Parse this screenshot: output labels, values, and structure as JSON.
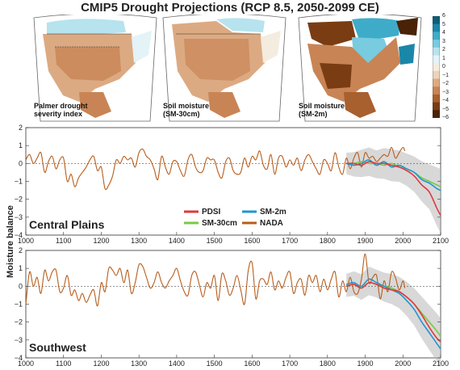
{
  "title": "CMIP5 Drought Projections (RCP 8.5, 2050-2099 CE)",
  "maps": [
    {
      "label_line1": "Palmer drought",
      "label_line2": "severity index"
    },
    {
      "label_line1": "Soil moisture",
      "label_line2": "(SM-30cm)"
    },
    {
      "label_line1": "Soil moisture",
      "label_line2": "(SM-2m)"
    }
  ],
  "colorbar": {
    "ticks": [
      "6",
      "5",
      "4",
      "3",
      "2",
      "1",
      "0",
      "−1",
      "−2",
      "−3",
      "−4",
      "−5",
      "−6"
    ],
    "colors": [
      "#0b5f77",
      "#1a87a8",
      "#3eacc9",
      "#79cbe0",
      "#b6e3ee",
      "#e3f3f7",
      "#f4ecdf",
      "#ecd3bb",
      "#dcaa82",
      "#c98455",
      "#a8602e",
      "#7a3d13",
      "#4a2206"
    ]
  },
  "ylabel": "Moisture balance",
  "colors": {
    "PDSI": "#e0383e",
    "SM-30cm": "#7ac943",
    "SM-2m": "#1f96d3",
    "NADA": "#b85c1a",
    "ensemble": "#b8b8b8"
  },
  "chart_data": [
    {
      "type": "line",
      "region": "Central Plains",
      "xlim": [
        1000,
        2100
      ],
      "ylim": [
        -4,
        2
      ],
      "xticks": [
        1000,
        1100,
        1200,
        1300,
        1400,
        1500,
        1600,
        1700,
        1800,
        1900,
        2000,
        2100
      ],
      "yticks": [
        2,
        1,
        0,
        -1,
        -2,
        -3,
        -4
      ],
      "legend": [
        "PDSI",
        "SM-2m",
        "SM-30cm",
        "NADA"
      ],
      "series": [
        {
          "name": "NADA",
          "x": [
            1000,
            1010,
            1020,
            1030,
            1040,
            1050,
            1060,
            1070,
            1080,
            1090,
            1100,
            1110,
            1120,
            1130,
            1140,
            1150,
            1160,
            1170,
            1180,
            1190,
            1200,
            1210,
            1220,
            1230,
            1240,
            1250,
            1260,
            1270,
            1280,
            1290,
            1300,
            1310,
            1320,
            1330,
            1340,
            1350,
            1360,
            1370,
            1380,
            1390,
            1400,
            1410,
            1420,
            1430,
            1440,
            1450,
            1460,
            1470,
            1480,
            1490,
            1500,
            1510,
            1520,
            1530,
            1540,
            1550,
            1560,
            1570,
            1580,
            1590,
            1600,
            1610,
            1620,
            1630,
            1640,
            1650,
            1660,
            1670,
            1680,
            1690,
            1700,
            1710,
            1720,
            1730,
            1740,
            1750,
            1760,
            1770,
            1780,
            1790,
            1800,
            1810,
            1820,
            1830,
            1840,
            1850,
            1860,
            1870,
            1880,
            1890,
            1900,
            1910,
            1920,
            1930,
            1940,
            1950,
            1960,
            1970,
            1980,
            1990,
            2000,
            2005
          ],
          "y": [
            0.2,
            0.5,
            0.0,
            0.3,
            0.6,
            -0.5,
            0.1,
            0.4,
            -0.3,
            0.2,
            0.3,
            -1.0,
            -0.6,
            -1.3,
            -0.8,
            -0.5,
            -0.2,
            0.2,
            0.4,
            -0.4,
            -0.2,
            -1.4,
            -1.2,
            -0.7,
            0.2,
            0.0,
            0.4,
            0.2,
            0.3,
            -0.2,
            0.6,
            0.8,
            0.4,
            0.2,
            -0.3,
            -0.9,
            0.4,
            -0.2,
            -0.6,
            0.1,
            0.1,
            -0.4,
            -0.7,
            0.2,
            0.5,
            -0.2,
            -0.5,
            -0.4,
            0.3,
            0.2,
            0.2,
            -0.5,
            -0.8,
            0.1,
            0.3,
            -0.4,
            -0.6,
            -0.5,
            0.3,
            -0.2,
            0.4,
            0.2,
            0.7,
            -0.1,
            -0.3,
            0.5,
            -0.6,
            0.3,
            0.4,
            -0.2,
            0.2,
            -0.1,
            0.3,
            -0.4,
            0.2,
            0.5,
            0.1,
            -0.3,
            -0.6,
            0.2,
            0.0,
            -0.4,
            0.6,
            -0.2,
            -0.6,
            0.3,
            -0.3,
            0.3,
            0.6,
            -0.2,
            0.6,
            0.3,
            0.4,
            0.1,
            0.3,
            0.5,
            0.4,
            0.9,
            0.3,
            0.6,
            0.9,
            0.7
          ]
        },
        {
          "name": "PDSI",
          "x": [
            1850,
            1870,
            1890,
            1910,
            1930,
            1950,
            1970,
            1990,
            2010,
            2030,
            2050,
            2070,
            2090,
            2100
          ],
          "y": [
            0.0,
            0.0,
            -0.1,
            0.1,
            0.0,
            0.0,
            -0.1,
            -0.2,
            -0.4,
            -0.7,
            -1.2,
            -1.6,
            -2.5,
            -2.9
          ]
        },
        {
          "name": "SM-2m",
          "x": [
            1850,
            1870,
            1890,
            1910,
            1930,
            1950,
            1970,
            1990,
            2010,
            2030,
            2050,
            2070,
            2090,
            2100
          ],
          "y": [
            0.0,
            -0.1,
            0.0,
            0.2,
            -0.1,
            0.1,
            -0.2,
            -0.1,
            -0.3,
            -0.5,
            -0.9,
            -1.1,
            -1.4,
            -1.5
          ]
        },
        {
          "name": "SM-30cm",
          "x": [
            1850,
            1870,
            1890,
            1910,
            1930,
            1950,
            1970,
            1990,
            2010,
            2030,
            2050,
            2070,
            2090,
            2100
          ],
          "y": [
            0.0,
            0.0,
            0.1,
            0.0,
            0.0,
            -0.1,
            0.0,
            -0.2,
            -0.3,
            -0.5,
            -0.8,
            -1.0,
            -1.2,
            -1.3
          ]
        }
      ]
    },
    {
      "type": "line",
      "region": "Southwest",
      "xlim": [
        1000,
        2100
      ],
      "ylim": [
        -4,
        2
      ],
      "xticks": [
        1000,
        1100,
        1200,
        1300,
        1400,
        1500,
        1600,
        1700,
        1800,
        1900,
        2000,
        2100
      ],
      "yticks": [
        2,
        1,
        0,
        -1,
        -2,
        -3,
        -4
      ],
      "series": [
        {
          "name": "NADA",
          "x": [
            1000,
            1010,
            1020,
            1030,
            1040,
            1050,
            1060,
            1070,
            1080,
            1090,
            1100,
            1110,
            1120,
            1130,
            1140,
            1150,
            1160,
            1170,
            1180,
            1190,
            1200,
            1210,
            1220,
            1230,
            1240,
            1250,
            1260,
            1270,
            1280,
            1290,
            1300,
            1310,
            1320,
            1330,
            1340,
            1350,
            1360,
            1370,
            1380,
            1390,
            1400,
            1410,
            1420,
            1430,
            1440,
            1450,
            1460,
            1470,
            1480,
            1490,
            1500,
            1510,
            1520,
            1530,
            1540,
            1550,
            1560,
            1570,
            1580,
            1590,
            1600,
            1610,
            1620,
            1630,
            1640,
            1650,
            1660,
            1670,
            1680,
            1690,
            1700,
            1710,
            1720,
            1730,
            1740,
            1750,
            1760,
            1770,
            1780,
            1790,
            1800,
            1810,
            1820,
            1830,
            1840,
            1850,
            1860,
            1870,
            1880,
            1890,
            1900,
            1910,
            1920,
            1930,
            1940,
            1950,
            1960,
            1970,
            1980,
            1990,
            2000,
            2005
          ],
          "y": [
            -1.0,
            0.8,
            0.0,
            0.5,
            -0.4,
            0.9,
            0.3,
            0.8,
            0.9,
            -0.3,
            -0.1,
            0.6,
            -0.5,
            -0.2,
            -0.8,
            -0.4,
            -0.9,
            -0.5,
            -0.2,
            -1.1,
            0.2,
            -0.3,
            1.0,
            0.9,
            0.6,
            1.0,
            0.2,
            0.9,
            -0.4,
            0.2,
            1.2,
            1.1,
            0.5,
            -0.1,
            0.2,
            0.8,
            0.2,
            -0.1,
            0.3,
            0.6,
            1.0,
            0.3,
            -0.3,
            -0.5,
            0.6,
            0.8,
            0.1,
            -0.6,
            0.2,
            -0.1,
            0.6,
            -0.8,
            0.7,
            0.3,
            -0.5,
            -0.1,
            0.6,
            -0.2,
            -1.0,
            0.9,
            1.3,
            -0.7,
            0.3,
            0.4,
            0.1,
            0.8,
            -0.2,
            0.3,
            -0.1,
            0.5,
            0.8,
            -0.4,
            0.2,
            0.4,
            -0.5,
            0.6,
            0.2,
            0.6,
            -0.3,
            0.4,
            -0.2,
            0.4,
            0.8,
            -0.6,
            0.3,
            -0.3,
            0.5,
            -0.3,
            -0.4,
            0.4,
            1.8,
            0.2,
            0.5,
            0.6,
            -0.7,
            0.3,
            -0.3,
            0.8,
            0.5,
            -0.2,
            0.3,
            -0.1
          ]
        },
        {
          "name": "PDSI",
          "x": [
            1850,
            1870,
            1890,
            1910,
            1930,
            1950,
            1970,
            1990,
            2010,
            2030,
            2050,
            2070,
            2090,
            2100
          ],
          "y": [
            0.0,
            0.1,
            -0.1,
            0.2,
            0.1,
            -0.1,
            -0.2,
            -0.3,
            -0.6,
            -1.0,
            -1.6,
            -2.3,
            -2.9,
            -3.1
          ]
        },
        {
          "name": "SM-2m",
          "x": [
            1850,
            1870,
            1890,
            1910,
            1930,
            1950,
            1970,
            1990,
            2010,
            2030,
            2050,
            2070,
            2090,
            2100
          ],
          "y": [
            0.1,
            0.2,
            0.0,
            0.4,
            0.2,
            0.0,
            -0.2,
            -0.4,
            -0.8,
            -1.3,
            -2.0,
            -2.6,
            -3.2,
            -3.5
          ]
        },
        {
          "name": "SM-30cm",
          "x": [
            1850,
            1870,
            1890,
            1910,
            1930,
            1950,
            1970,
            1990,
            2010,
            2030,
            2050,
            2070,
            2090,
            2100
          ],
          "y": [
            0.0,
            0.1,
            -0.1,
            0.2,
            0.1,
            0.0,
            -0.1,
            -0.3,
            -0.6,
            -1.0,
            -1.5,
            -2.0,
            -2.5,
            -2.8
          ]
        }
      ]
    }
  ]
}
